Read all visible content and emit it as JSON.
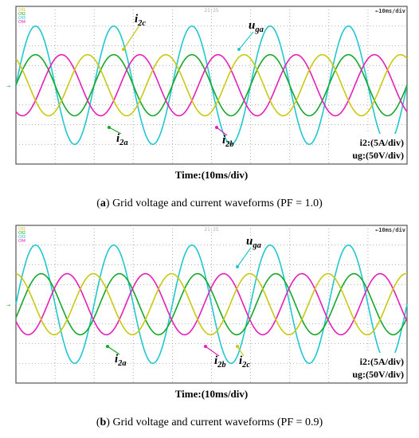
{
  "chart_data": [
    {
      "type": "line",
      "panel_label": "a",
      "caption": "Grid voltage and current waveforms (PF = 1.0)",
      "xlabel": "Time:(10ms/div)",
      "scale_readout": "10ms/div",
      "channel_tags": [
        "CH1",
        "CH2",
        "CH3",
        "CH4"
      ],
      "top_mid_readout": "21:25",
      "scale_labels": [
        "i2:(5A/div)",
        "ug:(50V/div)"
      ],
      "xlim": [
        0,
        100
      ],
      "ylim": [
        -4,
        4
      ],
      "grid": true,
      "legend": "inline",
      "series": [
        {
          "name": "uga",
          "color": "#22c7cf",
          "amplitude": 3.0,
          "period_ms": 20,
          "phase_deg": 0
        },
        {
          "name": "i2a",
          "color": "#16a72a",
          "amplitude": 1.55,
          "period_ms": 20,
          "phase_deg": 0
        },
        {
          "name": "i2b",
          "color": "#e61fb8",
          "amplitude": 1.55,
          "period_ms": 20,
          "phase_deg": -120
        },
        {
          "name": "i2c",
          "color": "#c9c812",
          "amplitude": 1.55,
          "period_ms": 20,
          "phase_deg": 120
        }
      ]
    },
    {
      "type": "line",
      "panel_label": "b",
      "caption": "Grid voltage and current waveforms (PF = 0.9)",
      "xlabel": "Time:(10ms/div)",
      "scale_readout": "10ms/div",
      "channel_tags": [
        "CH1",
        "CH2",
        "CH3",
        "CH4"
      ],
      "top_mid_readout": "21:25",
      "scale_labels": [
        "i2:(5A/div)",
        "ug:(50V/div)"
      ],
      "xlim": [
        0,
        100
      ],
      "ylim": [
        -4,
        4
      ],
      "grid": true,
      "legend": "inline",
      "series": [
        {
          "name": "uga",
          "color": "#22c7cf",
          "amplitude": 3.0,
          "period_ms": 20,
          "phase_deg": 0
        },
        {
          "name": "i2a",
          "color": "#16a72a",
          "amplitude": 1.55,
          "period_ms": 20,
          "phase_deg": -26
        },
        {
          "name": "i2b",
          "color": "#e61fb8",
          "amplitude": 1.55,
          "period_ms": 20,
          "phase_deg": -146
        },
        {
          "name": "i2c",
          "color": "#c9c812",
          "amplitude": 1.55,
          "period_ms": 20,
          "phase_deg": 94
        }
      ]
    }
  ]
}
